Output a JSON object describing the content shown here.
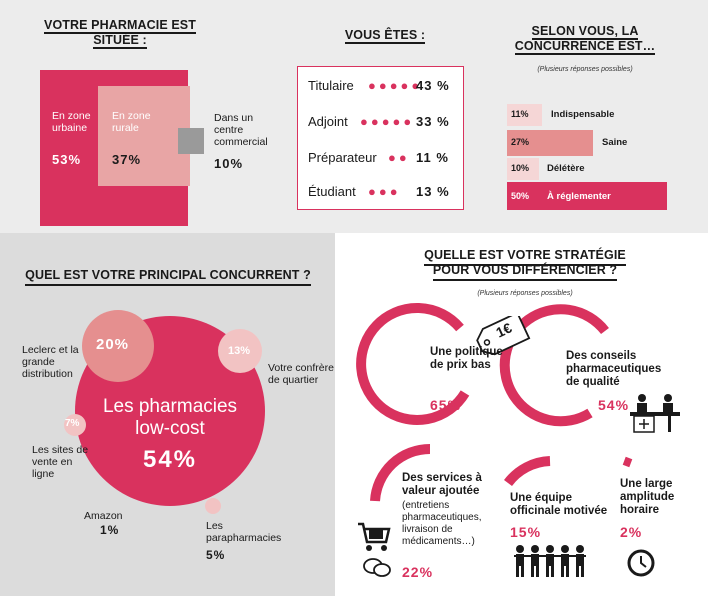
{
  "location": {
    "title": "VOTRE PHARMACIE EST SITUÉE :",
    "urban": {
      "label": "En zone urbaine",
      "value": "53%"
    },
    "rural": {
      "label": "En zone rurale",
      "value": "37%"
    },
    "commercial": {
      "label": "Dans un centre commercial",
      "value": "10%"
    },
    "colors": {
      "urban": "#d9325e",
      "rural": "#e8a5a5",
      "commercial": "#9a9a9a"
    }
  },
  "role": {
    "title": "VOUS ÊTES :",
    "rows": [
      {
        "label": "Titulaire",
        "value": "43 %"
      },
      {
        "label": "Adjoint",
        "value": "33 %"
      },
      {
        "label": "Préparateur",
        "value": "11 %"
      },
      {
        "label": "Étudiant",
        "value": "13 %"
      }
    ]
  },
  "competition": {
    "title": "SELON VOUS, LA CONCURRENCE EST…",
    "note": "(Plusieurs réponses possibles)",
    "bars": [
      {
        "pct": "11%",
        "label": "Indispensable",
        "value": 11
      },
      {
        "pct": "27%",
        "label": "Saine",
        "value": 27
      },
      {
        "pct": "10%",
        "label": "Délétère",
        "value": 10
      },
      {
        "pct": "50%",
        "label": "À réglementer",
        "value": 50
      }
    ]
  },
  "competitor": {
    "title": "QUEL EST VOTRE PRINCIPAL CONCURRENT ?",
    "main": {
      "label1": "Les pharmacies",
      "label2": "low-cost",
      "value": "54%"
    },
    "leclerc": {
      "value": "20%",
      "label": "Leclerc et la grande distribution"
    },
    "confrere": {
      "value": "13%",
      "label": "Votre confrère de quartier"
    },
    "online": {
      "value": "7%",
      "label": "Les sites de vente en ligne"
    },
    "amazon": {
      "label": "Amazon",
      "value": "1%"
    },
    "para": {
      "label": "Les parapharmacies",
      "value": "5%"
    }
  },
  "strategy": {
    "title": "QUELLE EST VOTRE STRATÉGIE POUR VOUS DIFFÉRENCIER ?",
    "note": "(Plusieurs réponses possibles)",
    "price": {
      "label": "Une politique de prix bas",
      "value": "65%",
      "tag": "1€"
    },
    "advice": {
      "label": "Des conseils pharmaceutiques de qualité",
      "value": "54%"
    },
    "services": {
      "label": "Des services à valeur ajoutée",
      "sub": "(entretiens pharmaceutiques, livraison de médicaments…)",
      "value": "22%"
    },
    "team": {
      "label": "Une équipe officinale motivée",
      "value": "15%"
    },
    "hours": {
      "label": "Une large amplitude horaire",
      "value": "2%"
    }
  }
}
